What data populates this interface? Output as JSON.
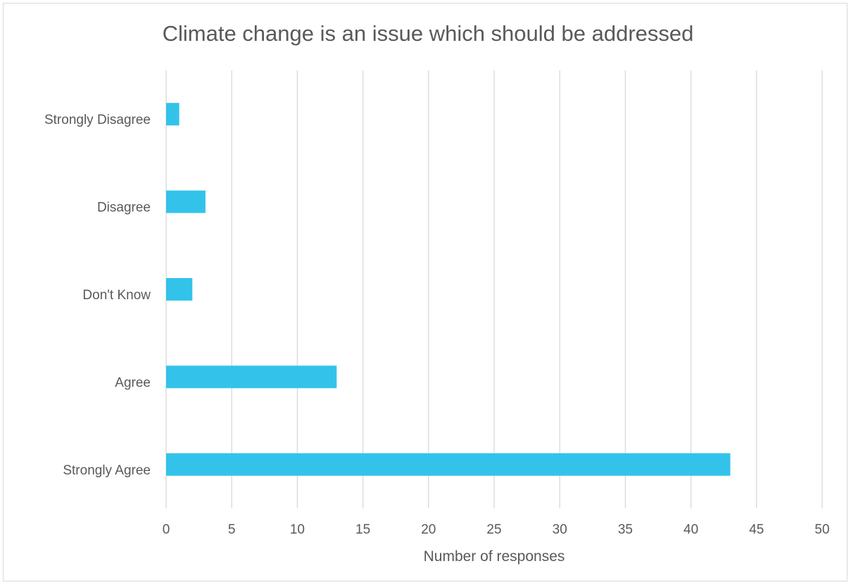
{
  "chart_data": {
    "type": "bar",
    "orientation": "horizontal",
    "title": "Climate change is an issue which should be addressed",
    "xlabel": "Number of responses",
    "ylabel": "",
    "categories": [
      "Strongly Disagree",
      "Disagree",
      "Don't Know",
      "Agree",
      "Strongly Agree"
    ],
    "values": [
      1,
      3,
      2,
      13,
      43
    ],
    "xlim": [
      0,
      50
    ],
    "x_ticks": [
      "0",
      "5",
      "10",
      "15",
      "20",
      "25",
      "30",
      "35",
      "40",
      "45",
      "50"
    ],
    "grid": "vertical",
    "legend": "none",
    "bar_color": "#33c3ea",
    "grid_color": "#d9d9d9"
  }
}
